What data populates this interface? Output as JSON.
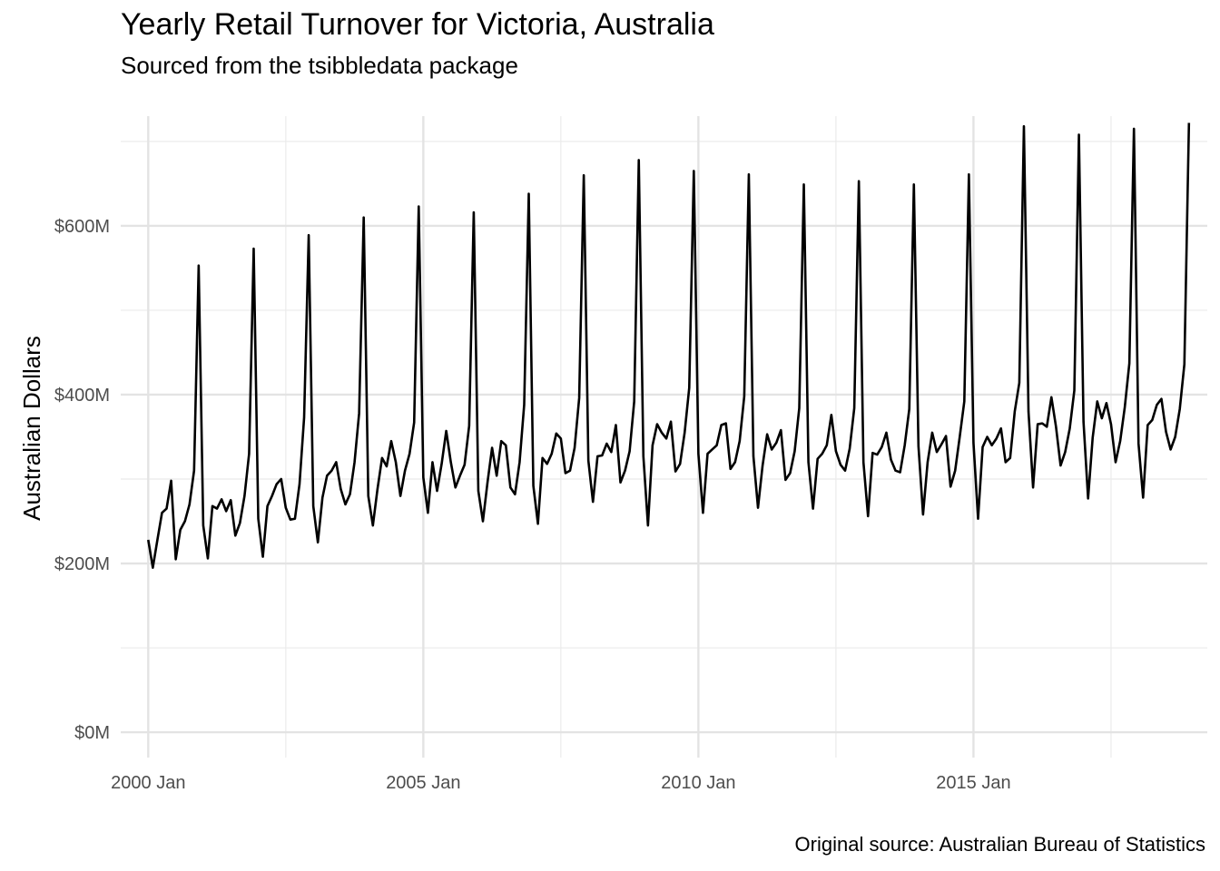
{
  "chart_data": {
    "type": "line",
    "title": "Yearly Retail Turnover for Victoria, Australia",
    "subtitle": "Sourced from the tsibbledata package",
    "caption": "Original source: Australian Bureau of Statistics",
    "xlabel": "",
    "ylabel": "Australian Dollars",
    "x_start": "2000 Jan",
    "x_frequency": "monthly",
    "xlim": [
      "1999 Jul",
      "2019 Apr"
    ],
    "ylim": [
      -30,
      730
    ],
    "y_unit": "$M",
    "x_ticks": [
      "2000 Jan",
      "2005 Jan",
      "2010 Jan",
      "2015 Jan"
    ],
    "y_ticks": [
      "$0M",
      "$200M",
      "$400M",
      "$600M"
    ],
    "y_tick_values": [
      0,
      200,
      400,
      600
    ],
    "grid": true,
    "legend": "none",
    "line_color": "#000000",
    "series": [
      {
        "values": [
          228,
          195,
          228,
          260,
          265,
          298,
          205,
          240,
          250,
          270,
          310,
          553,
          245,
          206,
          268,
          265,
          276,
          262,
          275,
          233,
          248,
          280,
          330,
          573,
          253,
          208,
          268,
          280,
          294,
          300,
          266,
          252,
          253,
          294,
          373,
          589,
          268,
          225,
          278,
          304,
          310,
          320,
          288,
          270,
          282,
          320,
          378,
          610,
          280,
          245,
          288,
          325,
          315,
          345,
          320,
          280,
          310,
          330,
          367,
          623,
          302,
          260,
          320,
          286,
          318,
          357,
          320,
          290,
          304,
          317,
          363,
          616,
          286,
          250,
          296,
          337,
          304,
          345,
          340,
          290,
          282,
          320,
          388,
          638,
          292,
          247,
          325,
          318,
          330,
          354,
          348,
          307,
          310,
          337,
          396,
          660,
          322,
          273,
          327,
          328,
          342,
          332,
          364,
          296,
          310,
          333,
          392,
          678,
          327,
          245,
          340,
          365,
          355,
          348,
          368,
          309,
          318,
          355,
          408,
          665,
          330,
          260,
          330,
          335,
          340,
          364,
          366,
          312,
          320,
          345,
          398,
          661,
          327,
          266,
          316,
          353,
          335,
          343,
          358,
          299,
          307,
          333,
          384,
          649,
          320,
          265,
          324,
          330,
          340,
          376,
          333,
          317,
          310,
          336,
          384,
          653,
          320,
          256,
          331,
          329,
          338,
          355,
          323,
          310,
          308,
          340,
          383,
          649,
          339,
          258,
          320,
          355,
          332,
          341,
          351,
          291,
          310,
          350,
          392,
          661,
          343,
          253,
          338,
          350,
          340,
          348,
          360,
          320,
          325,
          380,
          414,
          718,
          380,
          290,
          365,
          366,
          362,
          397,
          362,
          316,
          332,
          360,
          405,
          708,
          368,
          277,
          349,
          392,
          372,
          390,
          365,
          320,
          345,
          385,
          437,
          715,
          342,
          278,
          364,
          370,
          388,
          395,
          356,
          335,
          350,
          383,
          436,
          722
        ]
      }
    ]
  }
}
